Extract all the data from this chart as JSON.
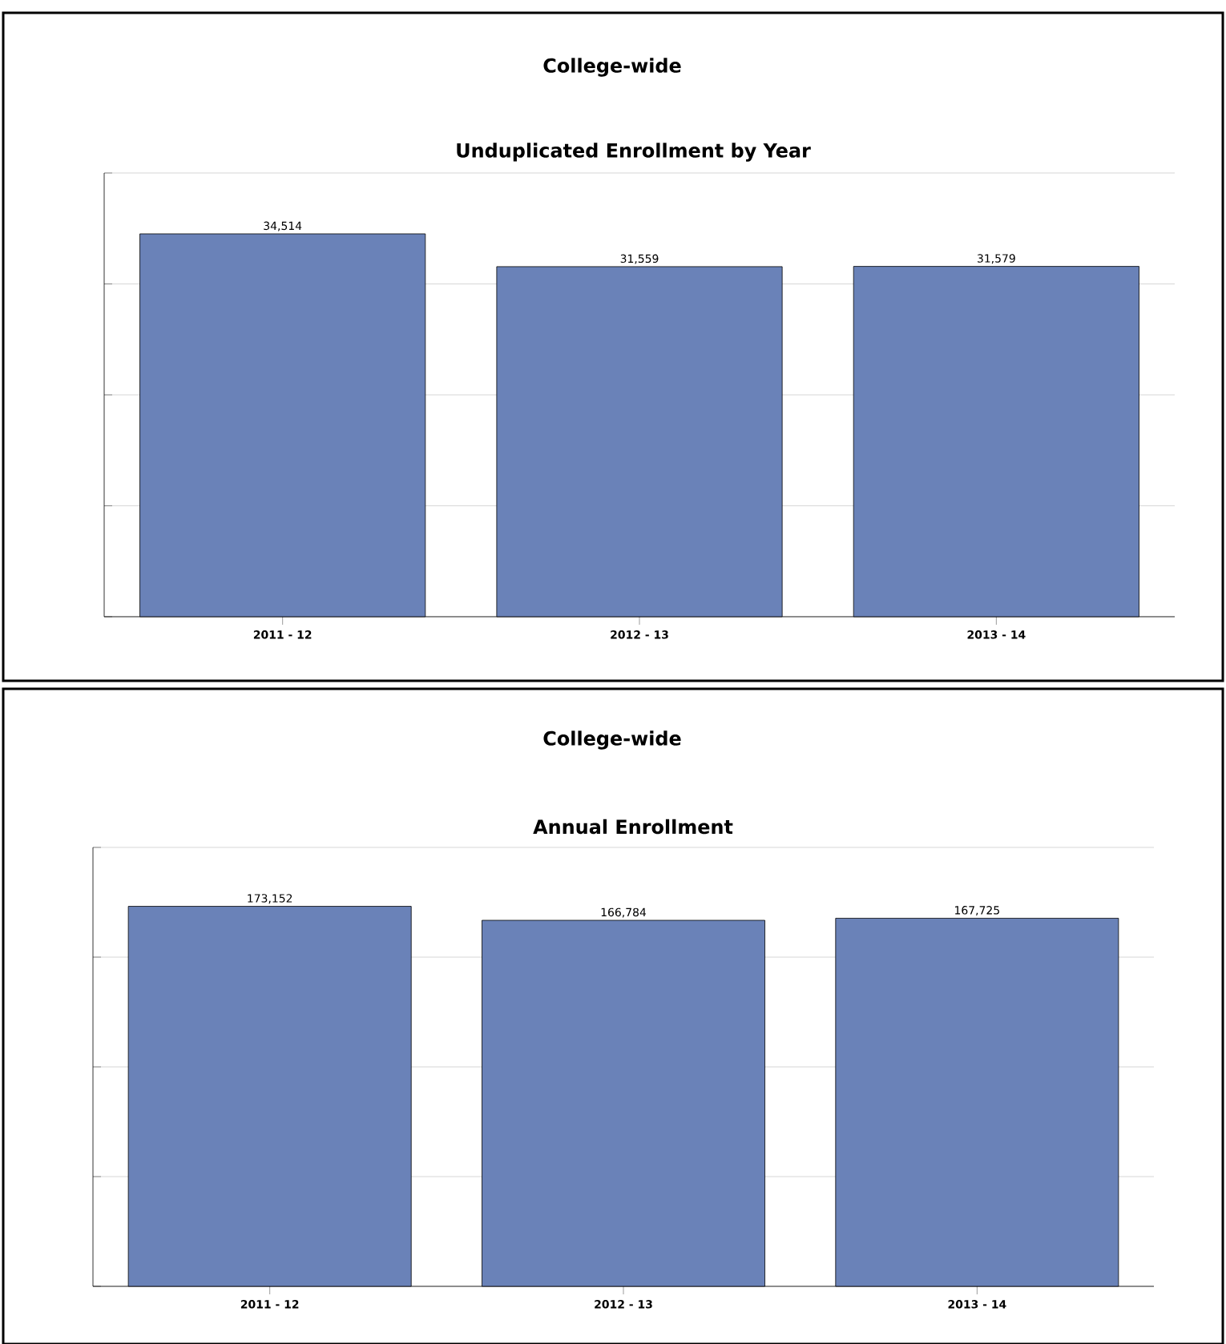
{
  "chart_data": [
    {
      "type": "bar",
      "title": "College-wide",
      "subtitle": "Unduplicated Enrollment by Year",
      "categories": [
        "2011 - 12",
        "2012 - 13",
        "2013 - 14"
      ],
      "values": [
        34514,
        31559,
        31579
      ],
      "value_labels": [
        "34,514",
        "31,559",
        "31,579"
      ],
      "color": "#6a82b8",
      "ylim": [
        0,
        40000
      ],
      "yticks": [
        {
          "value": 0,
          "label": null
        },
        {
          "value": 10000,
          "label": null
        },
        {
          "value": 20000,
          "label": null
        },
        {
          "value": 30000,
          "label": null
        },
        {
          "value": 40000,
          "label": null
        }
      ],
      "tick_labels": "x",
      "grid": "y"
    },
    {
      "type": "bar",
      "title": "College-wide",
      "subtitle": "Annual Enrollment",
      "categories": [
        "2011 - 12",
        "2012 - 13",
        "2013 - 14"
      ],
      "values": [
        173152,
        166784,
        167725
      ],
      "value_labels": [
        "173,152",
        "166,784",
        "167,725"
      ],
      "color": "#6a82b8",
      "ylim": [
        0,
        200000
      ],
      "yticks": [
        {
          "value": 0,
          "label": null
        },
        {
          "value": 50000,
          "label": null
        },
        {
          "value": 100000,
          "label": null
        },
        {
          "value": 150000,
          "label": null
        },
        {
          "value": 200000,
          "label": null
        }
      ],
      "tick_labels": "x",
      "grid": "y"
    }
  ]
}
